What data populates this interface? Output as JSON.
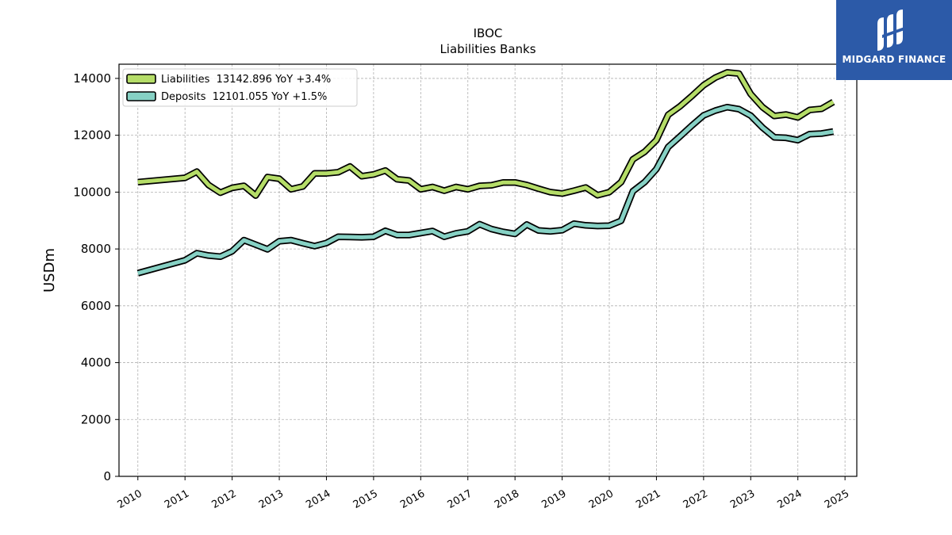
{
  "chart_data": {
    "type": "line",
    "title": "IBOC",
    "subtitle": "Liabilities Banks",
    "ylabel": "USDm",
    "xlabel": "",
    "xlim": [
      2009.6,
      2025.25
    ],
    "ylim": [
      0,
      14500
    ],
    "x_ticks": [
      2010,
      2011,
      2012,
      2013,
      2014,
      2015,
      2016,
      2017,
      2018,
      2019,
      2020,
      2021,
      2022,
      2023,
      2024,
      2025
    ],
    "x_tick_labels": [
      "2010",
      "2011",
      "2012",
      "2013",
      "2014",
      "2015",
      "2016",
      "2017",
      "2018",
      "2019",
      "2020",
      "2021",
      "2022",
      "2023",
      "2024",
      "2025"
    ],
    "y_ticks": [
      0,
      2000,
      4000,
      6000,
      8000,
      10000,
      12000,
      14000
    ],
    "y_tick_labels": [
      "0",
      "2000",
      "4000",
      "6000",
      "8000",
      "10000",
      "12000",
      "14000"
    ],
    "grid": true,
    "legend_position": "top-left",
    "series": [
      {
        "name": "Liabilities",
        "legend_label": "Liabilities  13142.896 YoY +3.4%",
        "color": "#b5dd68",
        "x": [
          2010.0,
          2011.0,
          2011.25,
          2011.5,
          2011.75,
          2012.0,
          2012.25,
          2012.5,
          2012.75,
          2013.0,
          2013.25,
          2013.5,
          2013.75,
          2014.0,
          2014.25,
          2014.5,
          2014.75,
          2015.0,
          2015.25,
          2015.5,
          2015.75,
          2016.0,
          2016.25,
          2016.5,
          2016.75,
          2017.0,
          2017.25,
          2017.5,
          2017.75,
          2018.0,
          2018.25,
          2018.5,
          2018.75,
          2019.0,
          2019.25,
          2019.5,
          2019.75,
          2020.0,
          2020.25,
          2020.5,
          2020.75,
          2021.0,
          2021.25,
          2021.5,
          2021.75,
          2022.0,
          2022.25,
          2022.5,
          2022.75,
          2023.0,
          2023.25,
          2023.5,
          2023.75,
          2024.0,
          2024.25,
          2024.5,
          2024.75
        ],
        "y": [
          10350,
          10500,
          10720,
          10250,
          9980,
          10150,
          10220,
          9880,
          10530,
          10470,
          10100,
          10200,
          10660,
          10660,
          10700,
          10900,
          10560,
          10620,
          10760,
          10450,
          10410,
          10100,
          10180,
          10050,
          10180,
          10100,
          10220,
          10240,
          10340,
          10340,
          10250,
          10120,
          10000,
          9950,
          10050,
          10160,
          9890,
          10000,
          10350,
          11150,
          11420,
          11830,
          12720,
          13020,
          13380,
          13760,
          14030,
          14210,
          14170,
          13450,
          12990,
          12680,
          12730,
          12630,
          12890,
          12930,
          13170
        ]
      },
      {
        "name": "Deposits",
        "legend_label": "Deposits  12101.055 YoY +1.5%",
        "color": "#86d1c4",
        "x": [
          2010.0,
          2011.0,
          2011.25,
          2011.5,
          2011.75,
          2012.0,
          2012.25,
          2012.5,
          2012.75,
          2013.0,
          2013.25,
          2013.5,
          2013.75,
          2014.0,
          2014.25,
          2014.5,
          2014.75,
          2015.0,
          2015.25,
          2015.5,
          2015.75,
          2016.0,
          2016.25,
          2016.5,
          2016.75,
          2017.0,
          2017.25,
          2017.5,
          2017.75,
          2018.0,
          2018.25,
          2018.5,
          2018.75,
          2019.0,
          2019.25,
          2019.5,
          2019.75,
          2020.0,
          2020.25,
          2020.5,
          2020.75,
          2021.0,
          2021.25,
          2021.5,
          2021.75,
          2022.0,
          2022.25,
          2022.5,
          2022.75,
          2023.0,
          2023.25,
          2023.5,
          2023.75,
          2024.0,
          2024.25,
          2024.5,
          2024.75
        ],
        "y": [
          7150,
          7600,
          7850,
          7770,
          7730,
          7920,
          8310,
          8150,
          7990,
          8270,
          8310,
          8200,
          8100,
          8210,
          8430,
          8420,
          8410,
          8430,
          8640,
          8490,
          8490,
          8560,
          8630,
          8430,
          8550,
          8620,
          8870,
          8700,
          8600,
          8530,
          8860,
          8650,
          8620,
          8660,
          8890,
          8830,
          8810,
          8820,
          8990,
          10030,
          10350,
          10810,
          11590,
          11960,
          12340,
          12700,
          12870,
          12990,
          12920,
          12690,
          12270,
          11930,
          11910,
          11830,
          12040,
          12060,
          12130
        ]
      }
    ]
  },
  "logo": {
    "text": "MIDGARD FINANCE",
    "background": "#2c5aa8"
  }
}
